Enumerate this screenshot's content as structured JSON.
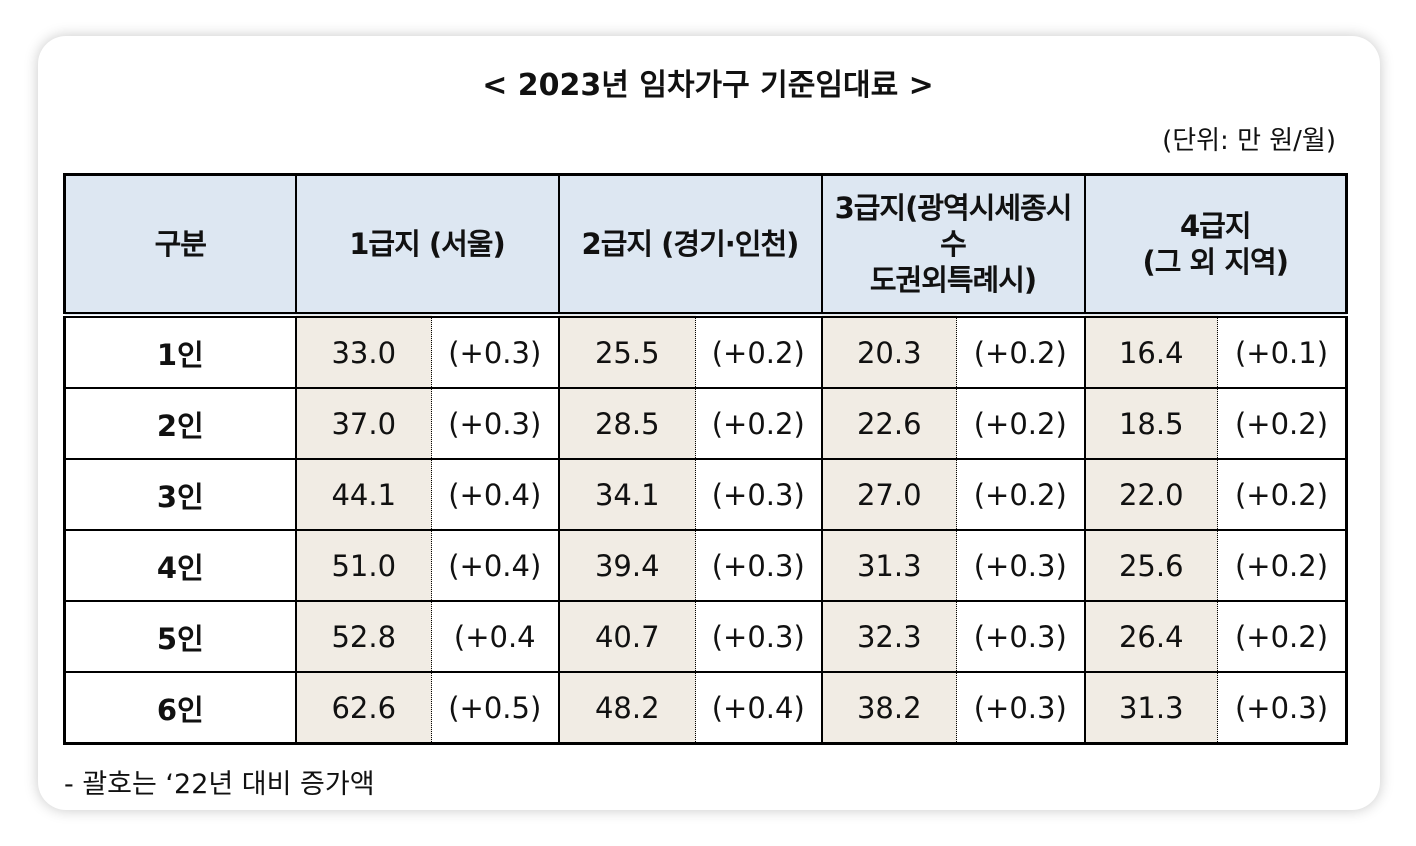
{
  "title": "< 2023년 임차가구 기준임대료 >",
  "unit": "(단위: 만 원/월)",
  "table": {
    "headers": [
      [
        "구분"
      ],
      [
        "1급지 (서울)"
      ],
      [
        "2급지 (경기·인천)"
      ],
      [
        "3급지(광역시세종시수",
        "도권외특례시)"
      ],
      [
        "4급지",
        "(그 외 지역)"
      ]
    ],
    "rows": [
      [
        "1인",
        "33.0",
        "(+0.3)",
        "25.5",
        "(+0.2)",
        "20.3",
        "(+0.2)",
        "16.4",
        "(+0.1)"
      ],
      [
        "2인",
        "37.0",
        "(+0.3)",
        "28.5",
        "(+0.2)",
        "22.6",
        "(+0.2)",
        "18.5",
        "(+0.2)"
      ],
      [
        "3인",
        "44.1",
        "(+0.4)",
        "34.1",
        "(+0.3)",
        "27.0",
        "(+0.2)",
        "22.0",
        "(+0.2)"
      ],
      [
        "4인",
        "51.0",
        "(+0.4)",
        "39.4",
        "(+0.3)",
        "31.3",
        "(+0.3)",
        "25.6",
        "(+0.2)"
      ],
      [
        "5인",
        "52.8",
        "(+0.4",
        "40.7",
        "(+0.3)",
        "32.3",
        "(+0.3)",
        "26.4",
        "(+0.2)"
      ],
      [
        "6인",
        "62.6",
        "(+0.5)",
        "48.2",
        "(+0.4)",
        "38.2",
        "(+0.3)",
        "31.3",
        "(+0.3)"
      ]
    ]
  },
  "footnote": "- 괄호는 ‘22년 대비 증가액"
}
